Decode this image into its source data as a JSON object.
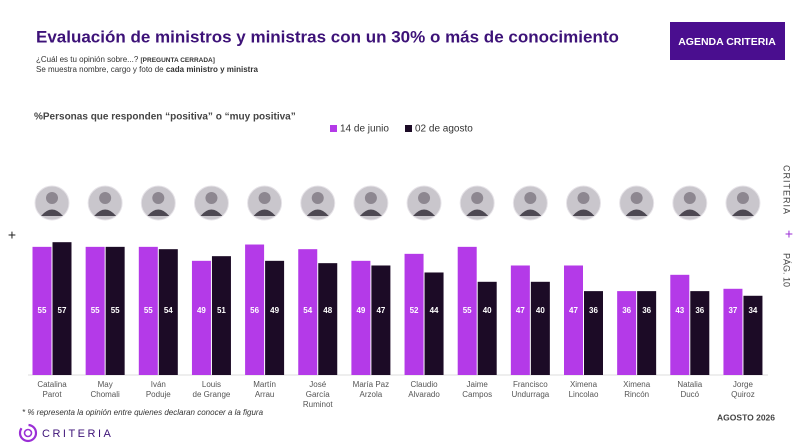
{
  "title": "Evaluación de ministros y ministras con un 30% o más de conocimiento",
  "question": {
    "text": "¿Cuál es tu opinión sobre...?",
    "tag": "[PREGUNTA CERRADA]"
  },
  "note": {
    "text": "Se muestra nombre, cargo y foto de",
    "bold": "cada ministro y ministra"
  },
  "badge": "AGENDA CRITERIA",
  "side_brand": "CRITERIA",
  "page": "PÁG. 10",
  "footnote": "* % representa la opinión entre quienes declaran conocer a la figura",
  "date": "AGOSTO 2026",
  "logo": "CRITERIA",
  "chart_data": {
    "type": "bar",
    "title": "%Personas que responden “positiva” o “muy positiva”",
    "categories": [
      "Catalina\nParot",
      "May\nChomali",
      "Iván\nPoduje",
      "Louis\nde Grange",
      "Martín\nArrau",
      "José\nGarcía\nRuminot",
      "María Paz\nArzola",
      "Claudio\nAlvarado",
      "Jaime\nCampos",
      "Francisco\nUndurraga",
      "Ximena\nLincolao",
      "Ximena\nRincón",
      "Natalia\nDucó",
      "Jorge\nQuiroz"
    ],
    "series": [
      {
        "name": "14 de junio",
        "color": "#b43ae8",
        "values": [
          55,
          55,
          55,
          49,
          56,
          54,
          49,
          52,
          55,
          47,
          47,
          36,
          43,
          37
        ]
      },
      {
        "name": "02 de agosto",
        "color": "#1c0b26",
        "values": [
          57,
          55,
          54,
          51,
          49,
          48,
          47,
          44,
          40,
          40,
          36,
          36,
          36,
          34
        ]
      }
    ]
  }
}
